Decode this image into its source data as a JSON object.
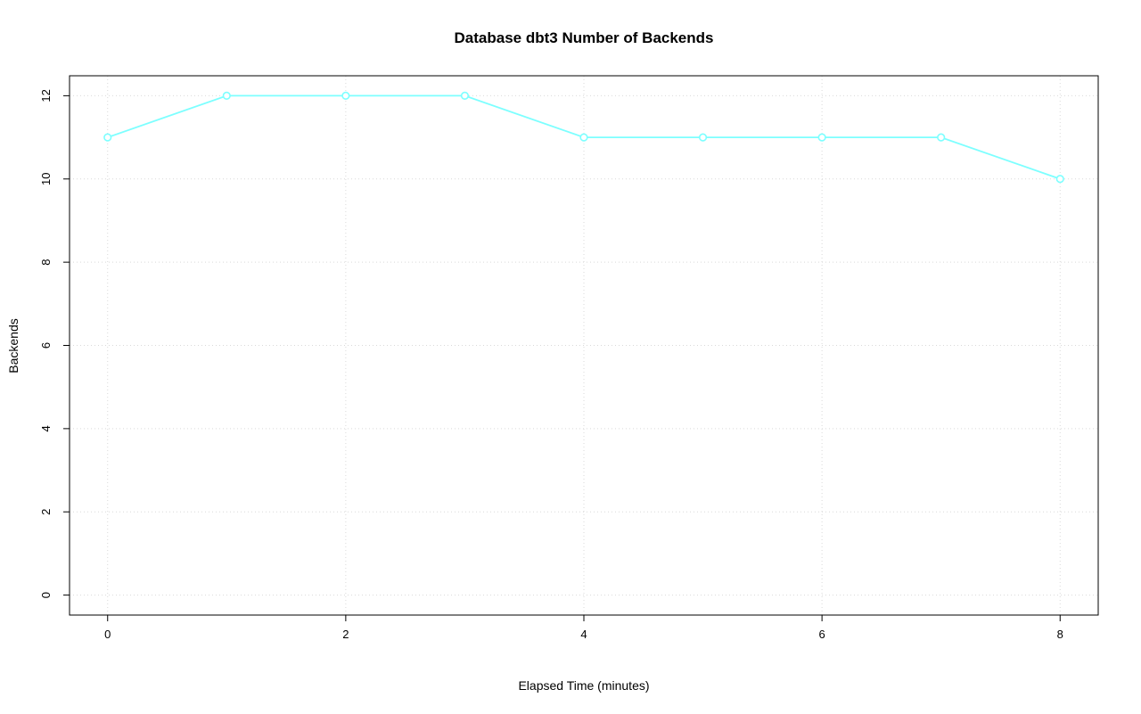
{
  "chart_data": {
    "type": "line",
    "title": "Database dbt3 Number of Backends",
    "xlabel": "Elapsed Time (minutes)",
    "ylabel": "Backends",
    "x": [
      0,
      1,
      2,
      3,
      4,
      5,
      6,
      7,
      8
    ],
    "values": [
      11,
      12,
      12,
      12,
      11,
      11,
      11,
      11,
      10
    ],
    "series_name": "Backends",
    "xticks": [
      0,
      2,
      4,
      6,
      8
    ],
    "yticks": [
      0,
      2,
      4,
      6,
      8,
      10,
      12
    ],
    "xlim": [
      -0.32,
      8.32
    ],
    "ylim": [
      -0.48,
      12.48
    ],
    "grid": true,
    "legend": "none",
    "line_color": "#7DFFFF",
    "marker": "open-circle",
    "grid_color": "#D9D9D9",
    "box_color": "#000000"
  }
}
